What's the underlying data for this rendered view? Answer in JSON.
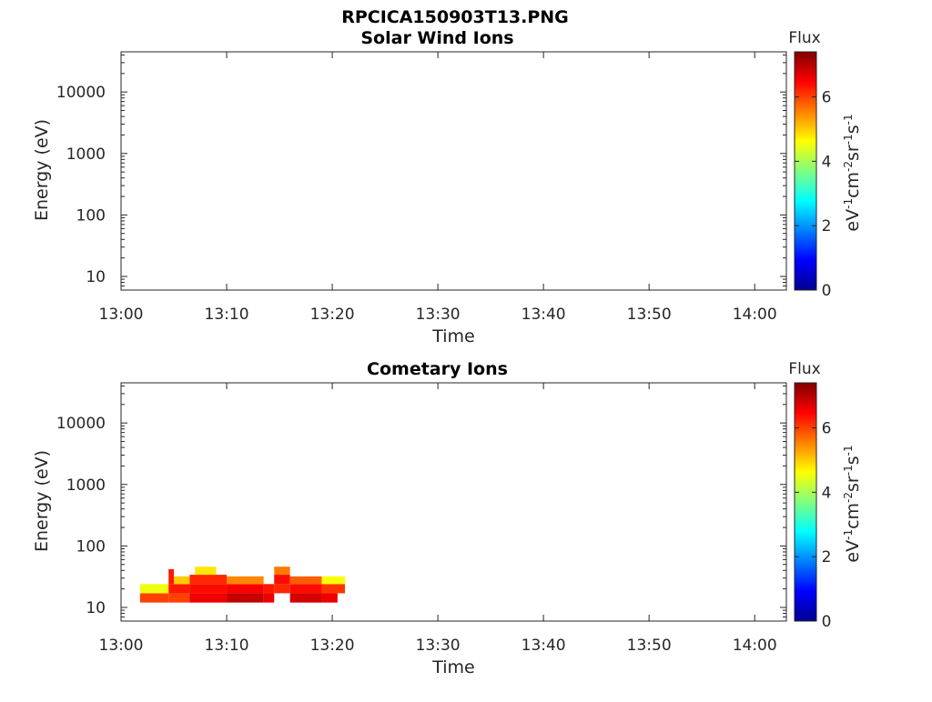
{
  "figure": {
    "title": "RPCICA150903T13.PNG"
  },
  "chart_data": [
    {
      "type": "heatmap",
      "title": "Solar Wind Ions",
      "xlabel": "Time",
      "ylabel": "Energy (eV)",
      "x_ticks": [
        "13:00",
        "13:10",
        "13:20",
        "13:30",
        "13:40",
        "13:50",
        "14:00"
      ],
      "x_range_minutes": [
        0,
        63
      ],
      "y_scale": "log",
      "y_ticks": [
        "10",
        "100",
        "1000",
        "10000"
      ],
      "y_range": [
        6,
        45000
      ],
      "colorbar": {
        "title": "Flux",
        "units": "eV-1cm-2sr-1s-1",
        "ticks": [
          "0",
          "2",
          "4",
          "6"
        ],
        "range": [
          0,
          7.4
        ]
      },
      "cells": []
    },
    {
      "type": "heatmap",
      "title": "Cometary Ions",
      "xlabel": "Time",
      "ylabel": "Energy (eV)",
      "x_ticks": [
        "13:00",
        "13:10",
        "13:20",
        "13:30",
        "13:40",
        "13:50",
        "14:00"
      ],
      "x_range_minutes": [
        0,
        63
      ],
      "y_scale": "log",
      "y_ticks": [
        "10",
        "100",
        "1000",
        "10000"
      ],
      "y_range": [
        6,
        45000
      ],
      "colorbar": {
        "title": "Flux",
        "units": "eV-1cm-2sr-1s-1",
        "ticks": [
          "0",
          "2",
          "4",
          "6"
        ],
        "range": [
          0,
          7.4
        ]
      },
      "cells": [
        {
          "t0": 1.8,
          "t1": 4.5,
          "e0": 12,
          "e1": 17,
          "v": 6.0
        },
        {
          "t0": 1.8,
          "t1": 4.5,
          "e0": 17,
          "e1": 24,
          "v": 4.5
        },
        {
          "t0": 4.5,
          "t1": 6.5,
          "e0": 12,
          "e1": 17,
          "v": 6.0
        },
        {
          "t0": 4.5,
          "t1": 6.5,
          "e0": 17,
          "e1": 24,
          "v": 6.3
        },
        {
          "t0": 4.5,
          "t1": 5.0,
          "e0": 24,
          "e1": 42,
          "v": 6.3
        },
        {
          "t0": 5.0,
          "t1": 6.5,
          "e0": 24,
          "e1": 32,
          "v": 5.0
        },
        {
          "t0": 6.5,
          "t1": 10.0,
          "e0": 12,
          "e1": 17,
          "v": 6.6
        },
        {
          "t0": 6.5,
          "t1": 10.0,
          "e0": 17,
          "e1": 24,
          "v": 6.4
        },
        {
          "t0": 6.5,
          "t1": 10.0,
          "e0": 24,
          "e1": 34,
          "v": 6.2
        },
        {
          "t0": 7.0,
          "t1": 9.0,
          "e0": 34,
          "e1": 46,
          "v": 4.8
        },
        {
          "t0": 10.0,
          "t1": 13.5,
          "e0": 12,
          "e1": 17,
          "v": 6.9
        },
        {
          "t0": 10.0,
          "t1": 13.5,
          "e0": 17,
          "e1": 24,
          "v": 6.5
        },
        {
          "t0": 10.0,
          "t1": 13.5,
          "e0": 24,
          "e1": 32,
          "v": 5.5
        },
        {
          "t0": 13.5,
          "t1": 14.5,
          "e0": 12,
          "e1": 17,
          "v": 6.6
        },
        {
          "t0": 13.5,
          "t1": 14.5,
          "e0": 17,
          "e1": 24,
          "v": 6.3
        },
        {
          "t0": 14.5,
          "t1": 16.0,
          "e0": 17,
          "e1": 24,
          "v": 6.2
        },
        {
          "t0": 14.5,
          "t1": 16.0,
          "e0": 24,
          "e1": 34,
          "v": 6.4
        },
        {
          "t0": 14.5,
          "t1": 16.0,
          "e0": 34,
          "e1": 46,
          "v": 5.6
        },
        {
          "t0": 16.0,
          "t1": 19.0,
          "e0": 12,
          "e1": 17,
          "v": 6.8
        },
        {
          "t0": 16.0,
          "t1": 19.0,
          "e0": 17,
          "e1": 24,
          "v": 6.4
        },
        {
          "t0": 16.0,
          "t1": 19.0,
          "e0": 24,
          "e1": 32,
          "v": 5.8
        },
        {
          "t0": 19.0,
          "t1": 21.2,
          "e0": 17,
          "e1": 24,
          "v": 6.1
        },
        {
          "t0": 19.0,
          "t1": 21.2,
          "e0": 24,
          "e1": 32,
          "v": 4.6
        },
        {
          "t0": 19.0,
          "t1": 20.5,
          "e0": 12,
          "e1": 17,
          "v": 6.6
        }
      ]
    }
  ]
}
